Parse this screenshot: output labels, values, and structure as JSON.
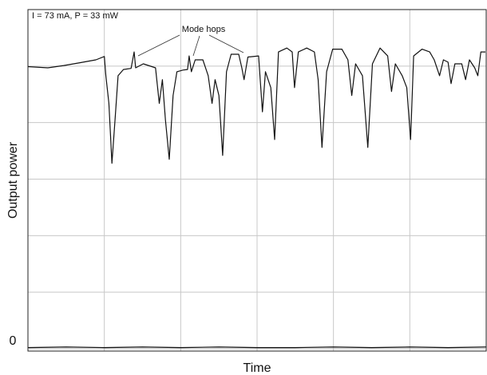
{
  "chart_data": {
    "type": "line",
    "annotation": "I = 73 mA, P = 33 mW",
    "callout": "Mode hops",
    "y_label": "Output power",
    "x_label": "Time",
    "xlim": [
      0,
      6
    ],
    "ylim": [
      0,
      6
    ],
    "yticks": [
      0
    ],
    "xgrid": [
      1,
      2,
      3,
      4,
      5
    ],
    "ygrid": [
      1,
      2,
      3,
      4,
      5
    ],
    "grid": true,
    "series": [
      {
        "color": "#111111",
        "x": [
          0,
          0.26,
          0.47,
          0.68,
          0.89,
          1.0,
          1.02,
          1.06,
          1.1,
          1.14,
          1.18,
          1.25,
          1.35,
          1.39,
          1.41,
          1.51,
          1.67,
          1.72,
          1.76,
          1.8,
          1.85,
          1.9,
          1.95,
          2.03,
          2.09,
          2.11,
          2.14,
          2.19,
          2.29,
          2.36,
          2.41,
          2.45,
          2.5,
          2.55,
          2.6,
          2.66,
          2.76,
          2.8,
          2.83,
          2.88,
          3.02,
          3.07,
          3.11,
          3.18,
          3.23,
          3.28,
          3.39,
          3.46,
          3.49,
          3.54,
          3.65,
          3.75,
          3.8,
          3.85,
          3.91,
          3.99,
          4.11,
          4.19,
          4.24,
          4.29,
          4.38,
          4.45,
          4.51,
          4.61,
          4.71,
          4.76,
          4.81,
          4.9,
          4.96,
          5.01,
          5.05,
          5.16,
          5.26,
          5.32,
          5.39,
          5.44,
          5.5,
          5.54,
          5.59,
          5.68,
          5.73,
          5.78,
          5.85,
          5.89,
          5.93,
          5.99
        ],
        "values": [
          4.99,
          4.97,
          5.01,
          5.06,
          5.11,
          5.17,
          4.83,
          4.34,
          3.28,
          4.05,
          4.83,
          4.94,
          4.96,
          5.25,
          4.97,
          5.04,
          4.97,
          4.34,
          4.76,
          4.05,
          3.35,
          4.48,
          4.9,
          4.93,
          4.94,
          5.18,
          4.9,
          5.11,
          5.11,
          4.83,
          4.34,
          4.76,
          4.48,
          3.42,
          4.9,
          5.21,
          5.21,
          4.97,
          4.76,
          5.16,
          5.18,
          4.19,
          4.9,
          4.62,
          3.7,
          5.25,
          5.32,
          5.25,
          4.62,
          5.25,
          5.32,
          5.25,
          4.76,
          3.56,
          4.9,
          5.3,
          5.3,
          5.11,
          4.48,
          5.04,
          4.83,
          3.56,
          5.04,
          5.32,
          5.18,
          4.55,
          5.04,
          4.83,
          4.62,
          3.7,
          5.18,
          5.3,
          5.25,
          5.11,
          4.83,
          5.11,
          5.07,
          4.69,
          5.04,
          5.04,
          4.76,
          5.11,
          4.97,
          4.83,
          5.25,
          5.25
        ]
      },
      {
        "color": "#111111",
        "x": [
          0,
          0.5,
          1,
          1.5,
          2,
          2.5,
          3,
          3.5,
          4,
          4.5,
          5,
          5.5,
          6
        ],
        "values": [
          0.02,
          0.03,
          0.02,
          0.03,
          0.02,
          0.03,
          0.02,
          0.02,
          0.03,
          0.02,
          0.03,
          0.02,
          0.03
        ]
      }
    ]
  }
}
